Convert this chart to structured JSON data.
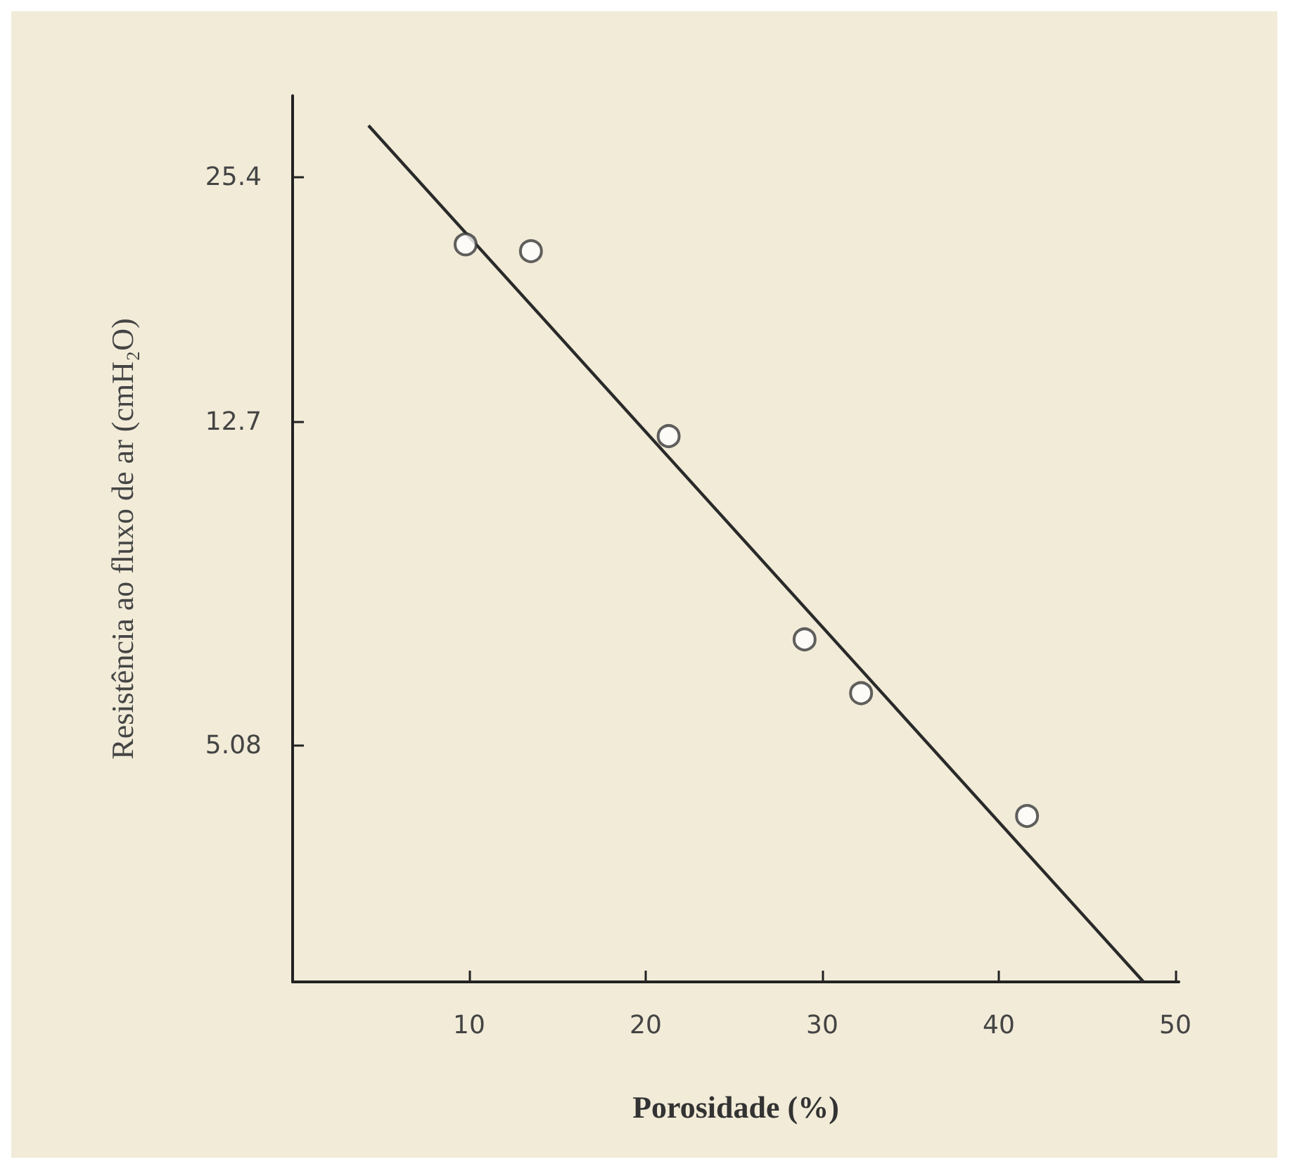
{
  "chart_data": {
    "type": "scatter",
    "xlabel": "Porosidade (%)",
    "ylabel": "Resistência ao fluxo de ar (cmH₂O)",
    "log": "y",
    "xlim": [
      0,
      50.2
    ],
    "xticks": [
      10,
      20,
      30,
      40,
      50
    ],
    "ylim": [
      2.6,
      32
    ],
    "yticks": [
      5.08,
      12.7,
      25.4
    ],
    "grid": false,
    "marker": "circle",
    "series": [
      {
        "type": "scatter",
        "color": "#3a3a3a",
        "x": [
          9.8,
          13.5,
          21.3,
          29.0,
          32.2,
          41.6
        ],
        "values": [
          21.0,
          20.6,
          12.2,
          6.86,
          5.89,
          4.16
        ]
      },
      {
        "type": "line",
        "color": "#2a2a2a",
        "x": [
          4.3,
          48.2
        ],
        "values": [
          29.4,
          2.6
        ],
        "marker": "none",
        "line_style": "solid"
      }
    ]
  }
}
